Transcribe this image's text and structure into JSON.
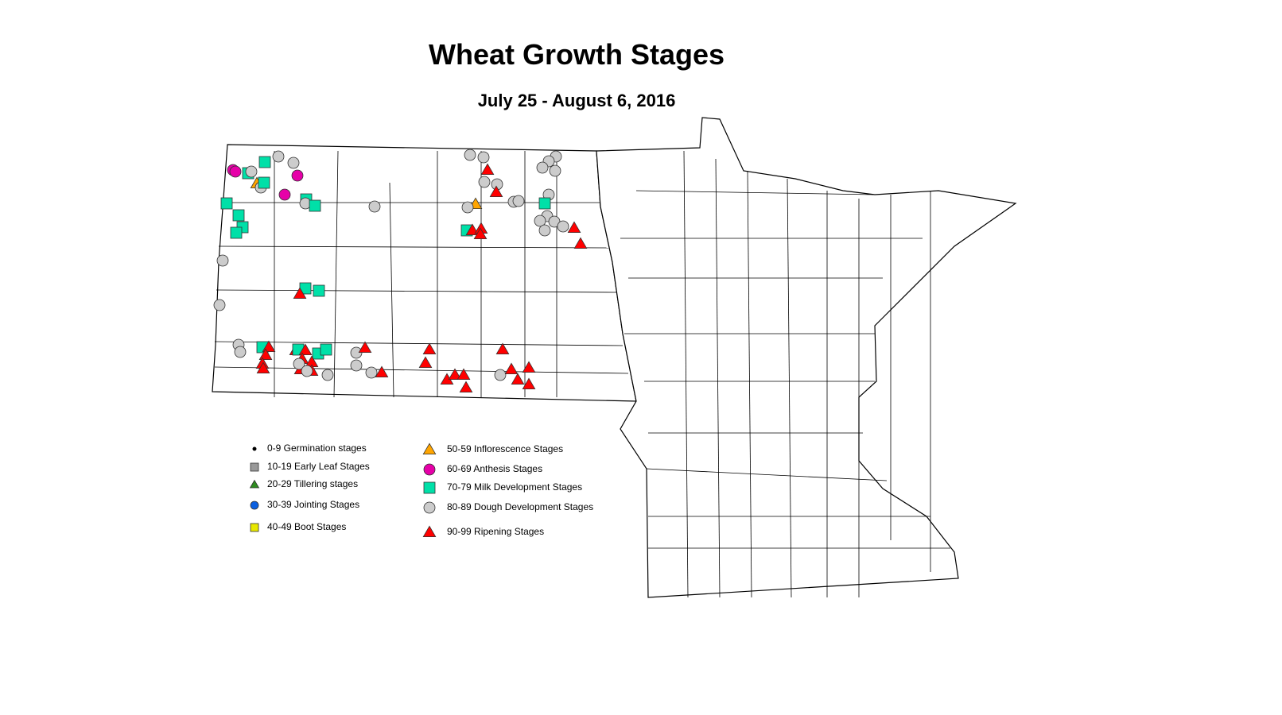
{
  "title": "Wheat Growth Stages",
  "subtitle": "July 25 - August 6, 2016",
  "legend": [
    {
      "label": "0-9 Germination stages",
      "symbol": "dot",
      "color": "#000000"
    },
    {
      "label": "10-19 Early Leaf Stages",
      "symbol": "square",
      "color": "#999999"
    },
    {
      "label": "20-29 Tillering stages",
      "symbol": "triangle",
      "color": "#2e8b1f"
    },
    {
      "label": "30-39 Jointing Stages",
      "symbol": "circle",
      "color": "#0a5fe0"
    },
    {
      "label": "40-49 Boot Stages",
      "symbol": "square",
      "color": "#e8e800"
    },
    {
      "label": "50-59 Inflorescence Stages",
      "symbol": "triangle",
      "color": "#ffa500"
    },
    {
      "label": "60-69 Anthesis Stages",
      "symbol": "circle",
      "color": "#e600a8"
    },
    {
      "label": "70-79 Milk Development Stages",
      "symbol": "square",
      "color": "#00e0a8"
    },
    {
      "label": "80-89 Dough Development Stages",
      "symbol": "circle",
      "color": "#cccccc"
    },
    {
      "label": "90-99 Ripening Stages",
      "symbol": "triangle",
      "color": "#ff0000"
    }
  ],
  "observation_stages": [
    "60-69",
    "60-69",
    "70-79",
    "80-89",
    "70-79",
    "80-89",
    "80-89",
    "60-69",
    "50-59",
    "80-89",
    "70-79",
    "60-69",
    "70-79",
    "80-89",
    "70-79",
    "70-79",
    "70-79",
    "70-79",
    "70-79",
    "80-89",
    "80-89",
    "70-79",
    "70-79",
    "90-99",
    "80-89",
    "80-89",
    "80-89",
    "90-99",
    "80-89",
    "80-89",
    "90-99",
    "50-59",
    "80-89",
    "80-89",
    "80-89",
    "70-79",
    "90-99",
    "90-99",
    "90-99",
    "80-89",
    "80-89",
    "80-89",
    "80-89",
    "80-89",
    "70-79",
    "80-89",
    "80-89",
    "80-89",
    "80-89",
    "80-89",
    "90-99",
    "90-99",
    "80-89",
    "80-89",
    "70-79",
    "90-99",
    "90-99",
    "90-99",
    "90-99",
    "90-99",
    "70-79",
    "90-99",
    "90-99",
    "70-79",
    "70-79",
    "90-99",
    "90-99",
    "90-99",
    "80-89",
    "80-89",
    "80-89",
    "80-89",
    "90-99",
    "80-89",
    "80-89",
    "90-99",
    "90-99",
    "90-99",
    "90-99",
    "90-99",
    "90-99",
    "90-99",
    "90-99",
    "80-89",
    "90-99",
    "90-99",
    "90-99",
    "90-99"
  ]
}
